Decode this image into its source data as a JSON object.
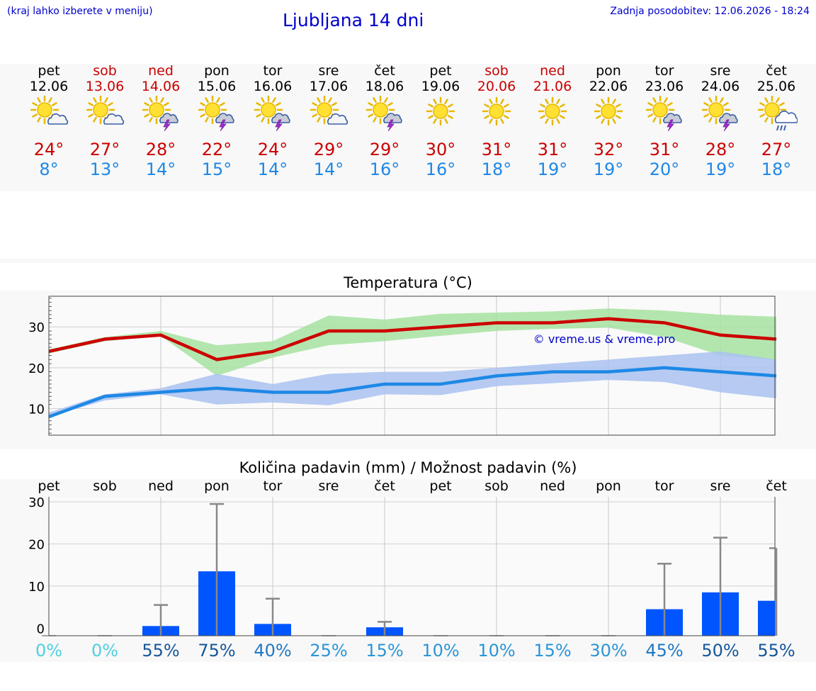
{
  "header": {
    "hint": "(kraj lahko izberete v meniju)",
    "title": "Ljubljana 14 dni",
    "updated": "Zadnja posodobitev: 12.06.2026 - 18:24"
  },
  "colors": {
    "accent": "#0000cc",
    "max": "#cc0000",
    "min": "#1e88e5",
    "maxBand": "#a6e2a0",
    "minBand": "#a9c1f0",
    "bar": "#0055ff"
  },
  "days": [
    {
      "name": "pet",
      "date": "12.06",
      "weekend": false,
      "icon": "sun-cloud-icon",
      "max": "24°",
      "min": "8°"
    },
    {
      "name": "sob",
      "date": "13.06",
      "weekend": true,
      "icon": "sun-cloud-icon",
      "max": "27°",
      "min": "13°"
    },
    {
      "name": "ned",
      "date": "14.06",
      "weekend": true,
      "icon": "sun-thunder-icon",
      "max": "28°",
      "min": "14°"
    },
    {
      "name": "pon",
      "date": "15.06",
      "weekend": false,
      "icon": "sun-thunder-icon",
      "max": "22°",
      "min": "15°"
    },
    {
      "name": "tor",
      "date": "16.06",
      "weekend": false,
      "icon": "sun-thunder-icon",
      "max": "24°",
      "min": "14°"
    },
    {
      "name": "sre",
      "date": "17.06",
      "weekend": false,
      "icon": "sun-cloud-icon",
      "max": "29°",
      "min": "14°"
    },
    {
      "name": "čet",
      "date": "18.06",
      "weekend": false,
      "icon": "sun-thunder-icon",
      "max": "29°",
      "min": "16°"
    },
    {
      "name": "pet",
      "date": "19.06",
      "weekend": false,
      "icon": "sun-icon",
      "max": "30°",
      "min": "16°"
    },
    {
      "name": "sob",
      "date": "20.06",
      "weekend": true,
      "icon": "sun-icon",
      "max": "31°",
      "min": "18°"
    },
    {
      "name": "ned",
      "date": "21.06",
      "weekend": true,
      "icon": "sun-icon",
      "max": "31°",
      "min": "19°"
    },
    {
      "name": "pon",
      "date": "22.06",
      "weekend": false,
      "icon": "sun-icon",
      "max": "32°",
      "min": "19°"
    },
    {
      "name": "tor",
      "date": "23.06",
      "weekend": false,
      "icon": "sun-thunder-icon",
      "max": "31°",
      "min": "20°"
    },
    {
      "name": "sre",
      "date": "24.06",
      "weekend": false,
      "icon": "sun-thunder-icon",
      "max": "28°",
      "min": "19°"
    },
    {
      "name": "čet",
      "date": "25.06",
      "weekend": false,
      "icon": "sun-rain-icon",
      "max": "27°",
      "min": "18°"
    }
  ],
  "chart_data": [
    {
      "type": "line",
      "title": "Temperatura (°C)",
      "watermark": "© vreme.us & vreme.pro",
      "x": [
        0,
        1,
        2,
        3,
        4,
        5,
        6,
        7,
        8,
        9,
        10,
        11,
        12,
        13
      ],
      "yticks": [
        10,
        20,
        30
      ],
      "ylim": [
        3.5,
        37.5
      ],
      "grid": true,
      "series": [
        {
          "values": [
            24,
            27,
            28,
            22,
            24,
            29,
            29,
            30,
            31,
            31,
            32,
            31,
            28,
            27
          ],
          "band_low": [
            23.5,
            26.5,
            27.8,
            18,
            22.5,
            25.5,
            26.5,
            27.8,
            29,
            29.5,
            29.8,
            27.5,
            23,
            22
          ],
          "band_high": [
            24.5,
            27.5,
            29,
            25.5,
            26.5,
            32.8,
            31.8,
            33.2,
            33.5,
            33.8,
            34.5,
            34,
            33,
            32.5
          ]
        },
        {
          "values": [
            8,
            13,
            14,
            15,
            14,
            14,
            16,
            16,
            18,
            19,
            19,
            20,
            19,
            18
          ],
          "band_low": [
            8,
            12,
            13.5,
            11,
            11.5,
            10.8,
            13.5,
            13.3,
            15.5,
            16.2,
            17,
            16.5,
            14,
            12.5
          ],
          "band_high": [
            9,
            13.5,
            15,
            18.5,
            16,
            18.5,
            19,
            19,
            20,
            21,
            22,
            23,
            24,
            22
          ]
        }
      ]
    },
    {
      "type": "bar",
      "title": "Količina padavin (mm) / Možnost padavin (%)",
      "categories": [
        "pet",
        "sob",
        "ned",
        "pon",
        "tor",
        "sre",
        "čet",
        "pet",
        "sob",
        "ned",
        "pon",
        "tor",
        "sre",
        "čet"
      ],
      "values": [
        0,
        0,
        0.5,
        13.5,
        1,
        0,
        0.2,
        0,
        0,
        0,
        0,
        4.5,
        8.5,
        6.5
      ],
      "upper": [
        0,
        0,
        5.5,
        29.5,
        7,
        0,
        1.5,
        0,
        0,
        0,
        0,
        15.3,
        21.5,
        19
      ],
      "chance": [
        "0%",
        "0%",
        "55%",
        "75%",
        "40%",
        "25%",
        "15%",
        "10%",
        "10%",
        "15%",
        "30%",
        "45%",
        "50%",
        "55%"
      ],
      "yticks": [
        0,
        10,
        20,
        30
      ],
      "ylim": [
        -1.8,
        31.2
      ],
      "grid": true
    }
  ]
}
